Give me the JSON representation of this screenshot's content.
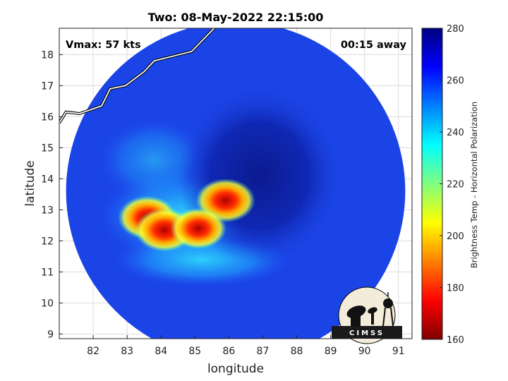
{
  "chart_data": {
    "type": "heatmap",
    "title": "Two: 08-May-2022 22:15:00",
    "xlabel": "longitude",
    "ylabel": "latitude",
    "xlim": [
      81.0,
      91.4
    ],
    "ylim": [
      8.85,
      18.85
    ],
    "x_ticks": [
      82,
      83,
      84,
      85,
      86,
      87,
      88,
      89,
      90,
      91
    ],
    "y_ticks": [
      9,
      10,
      11,
      12,
      13,
      14,
      15,
      16,
      17,
      18
    ],
    "grid": true,
    "annotations": {
      "vmax": "Vmax: 57 kts",
      "time_away": "00:15 away"
    },
    "colorbar": {
      "label": "Brightness Temp - Horizontal Polarization",
      "range": [
        160,
        280
      ],
      "ticks": [
        160,
        180,
        200,
        220,
        240,
        260,
        280
      ],
      "colormap": "jet"
    },
    "swath": {
      "center_lon": 86.2,
      "center_lat": 13.6,
      "radius_deg": 5.0
    },
    "eye": {
      "lon": 86.9,
      "lat": 14.1,
      "min_temp": 272
    },
    "cold_cells": [
      {
        "lon": 83.6,
        "lat": 12.75,
        "min_temp": 192
      },
      {
        "lon": 84.1,
        "lat": 12.35,
        "min_temp": 192
      },
      {
        "lon": 85.9,
        "lat": 13.3,
        "min_temp": 190
      },
      {
        "lon": 85.1,
        "lat": 12.4,
        "min_temp": 200
      }
    ],
    "coastline": [
      [
        85.7,
        19.0
      ],
      [
        84.9,
        18.1
      ],
      [
        83.8,
        17.8
      ],
      [
        83.5,
        17.45
      ],
      [
        82.95,
        17.0
      ],
      [
        82.5,
        16.9
      ],
      [
        82.25,
        16.35
      ],
      [
        81.6,
        16.1
      ],
      [
        81.2,
        16.15
      ],
      [
        81.0,
        15.8
      ]
    ]
  },
  "logo": {
    "text": "CIMSS"
  }
}
